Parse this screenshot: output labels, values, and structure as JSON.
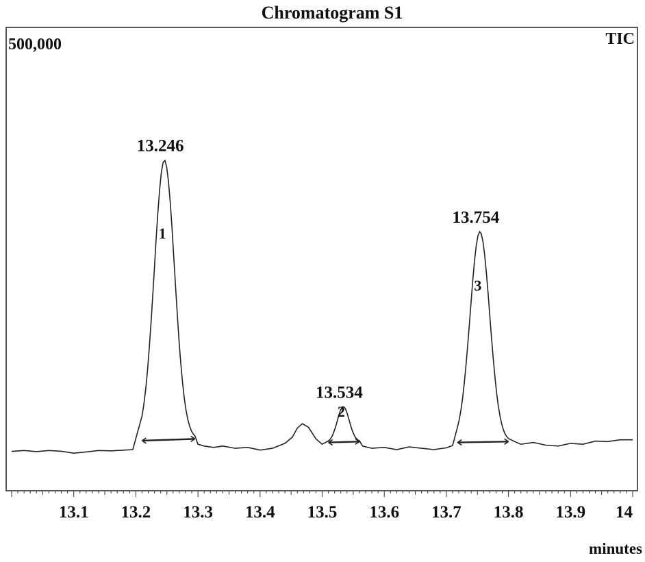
{
  "chart_data": {
    "type": "line",
    "title": "Chromatogram S1",
    "signal_label": "TIC",
    "y_scale_label": "500,000",
    "xlabel": "minutes",
    "ylabel": "",
    "xlim": [
      13.0,
      14.0
    ],
    "ylim": [
      0,
      500000
    ],
    "x_ticks": [
      "13.1",
      "13.2",
      "13.3",
      "13.4",
      "13.5",
      "13.6",
      "13.7",
      "13.8",
      "13.9",
      "14"
    ],
    "grid": false,
    "baseline": [
      [
        13.0,
        44000
      ],
      [
        13.02,
        45000
      ],
      [
        13.04,
        43800
      ],
      [
        13.06,
        45000
      ],
      [
        13.08,
        44200
      ],
      [
        13.1,
        42000
      ],
      [
        13.12,
        43400
      ],
      [
        13.14,
        45000
      ],
      [
        13.16,
        44600
      ],
      [
        13.18,
        45400
      ],
      [
        13.195,
        46000
      ],
      [
        13.3,
        52000
      ],
      [
        13.31,
        50000
      ],
      [
        13.325,
        48500
      ],
      [
        13.34,
        50000
      ],
      [
        13.36,
        47500
      ],
      [
        13.38,
        48500
      ],
      [
        13.4,
        45500
      ],
      [
        13.42,
        47500
      ],
      [
        13.44,
        53000
      ],
      [
        13.452,
        60000
      ],
      [
        13.46,
        70000
      ],
      [
        13.468,
        75000
      ],
      [
        13.478,
        71000
      ],
      [
        13.49,
        58000
      ],
      [
        13.5,
        52000
      ],
      [
        13.565,
        50000
      ],
      [
        13.58,
        47500
      ],
      [
        13.6,
        48500
      ],
      [
        13.62,
        46000
      ],
      [
        13.64,
        49000
      ],
      [
        13.66,
        47500
      ],
      [
        13.68,
        46000
      ],
      [
        13.7,
        48000
      ],
      [
        13.71,
        50500
      ],
      [
        13.81,
        55000
      ],
      [
        13.82,
        52000
      ],
      [
        13.84,
        54000
      ],
      [
        13.86,
        51000
      ],
      [
        13.88,
        50000
      ],
      [
        13.9,
        53000
      ],
      [
        13.92,
        52000
      ],
      [
        13.94,
        55500
      ],
      [
        13.96,
        55000
      ],
      [
        13.98,
        57000
      ],
      [
        14.0,
        57000
      ]
    ],
    "peaks": [
      {
        "number": "1",
        "label": "13.246",
        "retention_time": 13.246,
        "height": 370000,
        "start": 13.21,
        "end": 13.295,
        "start_y": 56000,
        "end_y": 58000
      },
      {
        "number": "2",
        "label": "13.534",
        "retention_time": 13.534,
        "height": 94000,
        "start": 13.51,
        "end": 13.56,
        "start_y": 54000,
        "end_y": 55000
      },
      {
        "number": "3",
        "label": "13.754",
        "retention_time": 13.754,
        "height": 290000,
        "start": 13.718,
        "end": 13.8,
        "start_y": 54000,
        "end_y": 55000
      }
    ]
  }
}
